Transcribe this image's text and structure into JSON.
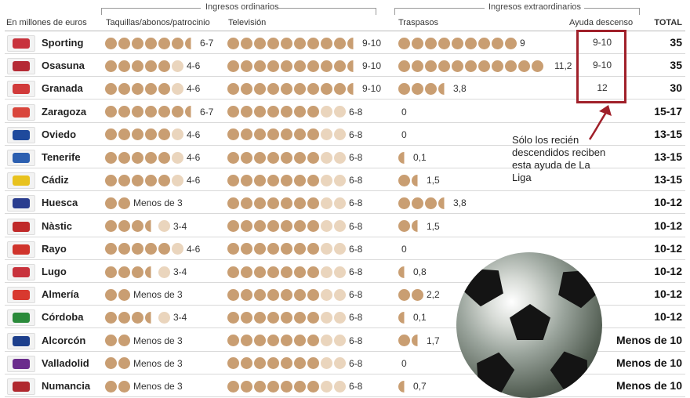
{
  "header": {
    "units": "En millones de euros",
    "group_ordinarios": "Ingresos ordinarios",
    "group_extraordinarios": "Ingresos extraordinarios",
    "col_taquillas": "Taquillas/abonos/patrocinio",
    "col_television": "Televisión",
    "col_traspasos": "Traspasos",
    "col_ayuda": "Ayuda descenso",
    "col_total": "TOTAL"
  },
  "note": "Sólo los recién descendidos reciben esta ayuda de La Liga",
  "colors": {
    "dot": "#c99e72",
    "dot_light": "#ead5bd",
    "highlight": "#a0202a"
  },
  "chart_data": {
    "type": "table",
    "rows": [
      {
        "team": "Sporting",
        "taquillas": "6-7",
        "taq_dots": 6.5,
        "television": "9-10",
        "tv_dots": 9.5,
        "traspasos": "9",
        "tras_dots": 9,
        "ayuda": "9-10",
        "total": "35",
        "logo": "#c8323c"
      },
      {
        "team": "Osasuna",
        "taquillas": "4-6",
        "taq_dots": 5,
        "television": "9-10",
        "tv_dots": 9.5,
        "traspasos": "11,2",
        "tras_dots": 11.2,
        "ayuda": "9-10",
        "total": "35",
        "logo": "#b52a35"
      },
      {
        "team": "Granada",
        "taquillas": "4-6",
        "taq_dots": 5,
        "television": "9-10",
        "tv_dots": 9.5,
        "traspasos": "3,8",
        "tras_dots": 3.8,
        "ayuda": "12",
        "total": "30",
        "logo": "#d13a3a"
      },
      {
        "team": "Zaragoza",
        "taquillas": "6-7",
        "taq_dots": 6.5,
        "television": "6-8",
        "tv_dots": 7,
        "traspasos": "0",
        "tras_dots": 0,
        "ayuda": "",
        "total": "15-17",
        "logo": "#d9463c"
      },
      {
        "team": "Oviedo",
        "taquillas": "4-6",
        "taq_dots": 5,
        "television": "6-8",
        "tv_dots": 7,
        "traspasos": "0",
        "tras_dots": 0,
        "ayuda": "",
        "total": "13-15",
        "logo": "#1f4a9c"
      },
      {
        "team": "Tenerife",
        "taquillas": "4-6",
        "taq_dots": 5,
        "television": "6-8",
        "tv_dots": 7,
        "traspasos": "0,1",
        "tras_dots": 0.5,
        "ayuda": "",
        "total": "13-15",
        "logo": "#2c5fb0"
      },
      {
        "team": "Cádiz",
        "taquillas": "4-6",
        "taq_dots": 5,
        "television": "6-8",
        "tv_dots": 7,
        "traspasos": "1,5",
        "tras_dots": 1.5,
        "ayuda": "",
        "total": "13-15",
        "logo": "#e8c21e"
      },
      {
        "team": "Huesca",
        "taquillas": "Menos de 3",
        "taq_dots": 2,
        "television": "6-8",
        "tv_dots": 7,
        "traspasos": "3,8",
        "tras_dots": 3.8,
        "ayuda": "",
        "total": "10-12",
        "logo": "#2a3d8f"
      },
      {
        "team": "Nàstic",
        "taquillas": "3-4",
        "taq_dots": 3.5,
        "television": "6-8",
        "tv_dots": 7,
        "traspasos": "1,5",
        "tras_dots": 1.5,
        "ayuda": "",
        "total": "10-12",
        "logo": "#c02a2a"
      },
      {
        "team": "Rayo",
        "taquillas": "4-6",
        "taq_dots": 5,
        "television": "6-8",
        "tv_dots": 7,
        "traspasos": "0",
        "tras_dots": 0,
        "ayuda": "",
        "total": "10-12",
        "logo": "#d0342c"
      },
      {
        "team": "Lugo",
        "taquillas": "3-4",
        "taq_dots": 3.5,
        "television": "6-8",
        "tv_dots": 7,
        "traspasos": "0,8",
        "tras_dots": 0.8,
        "ayuda": "",
        "total": "10-12",
        "logo": "#c8323c"
      },
      {
        "team": "Almería",
        "taquillas": "Menos de 3",
        "taq_dots": 2,
        "television": "6-8",
        "tv_dots": 7,
        "traspasos": "2,2",
        "tras_dots": 2.2,
        "ayuda": "",
        "total": "10-12",
        "logo": "#d8392f"
      },
      {
        "team": "Córdoba",
        "taquillas": "3-4",
        "taq_dots": 3.5,
        "television": "6-8",
        "tv_dots": 7,
        "traspasos": "0,1",
        "tras_dots": 0.5,
        "ayuda": "",
        "total": "10-12",
        "logo": "#2a8a3a"
      },
      {
        "team": "Alcorcón",
        "taquillas": "Menos de 3",
        "taq_dots": 2,
        "television": "6-8",
        "tv_dots": 7,
        "traspasos": "1,7",
        "tras_dots": 1.7,
        "ayuda": "",
        "total": "Menos de 10",
        "logo": "#1d3f8c"
      },
      {
        "team": "Valladolid",
        "taquillas": "Menos de 3",
        "taq_dots": 2,
        "television": "6-8",
        "tv_dots": 7,
        "traspasos": "0",
        "tras_dots": 0,
        "ayuda": "",
        "total": "Menos de 10",
        "logo": "#6a2c8c"
      },
      {
        "team": "Numancia",
        "taquillas": "Menos de 3",
        "taq_dots": 2,
        "television": "6-8",
        "tv_dots": 7,
        "traspasos": "0,7",
        "tras_dots": 0.7,
        "ayuda": "",
        "total": "Menos de 10",
        "logo": "#b0282e"
      }
    ]
  }
}
